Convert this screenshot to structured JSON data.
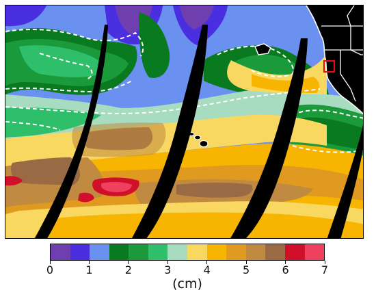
{
  "map": {
    "colors": {
      "bg_blue": "#6a90f0",
      "purple": "#6f3fb0",
      "dark_blue": "#4a2fe0",
      "light_blue": "#6a90f0",
      "dark_green": "#0a7a20",
      "green": "#1a9a3a",
      "teal_green": "#2fbf6a",
      "pale_green": "#a8dcc0",
      "yellow": "#f8d860",
      "orange": "#f7b400",
      "dark_orange": "#e09a20",
      "tan": "#c08a40",
      "brown": "#9a6a45",
      "crimson": "#d0102a",
      "red": "#f04060",
      "land_black": "#000000",
      "contour_white": "#ffffff",
      "highlight_box": "#e01010"
    },
    "features": [
      "swath-gap",
      "dashed-contour",
      "land-west-coast",
      "state-borders",
      "hawaiian-islands",
      "study-region-box"
    ]
  },
  "colorbar": {
    "colors": [
      "#6f3fb0",
      "#4a2fe0",
      "#6a90f0",
      "#0a7a20",
      "#1a9a3a",
      "#2fbf6a",
      "#a8dcc0",
      "#f8d860",
      "#f7b400",
      "#e09a20",
      "#c08a40",
      "#9a6a45",
      "#d0102a",
      "#f04060"
    ],
    "tick_labels": [
      "0",
      "1",
      "2",
      "3",
      "4",
      "5",
      "6",
      "7"
    ],
    "unit": "(cm)",
    "range": [
      0,
      7
    ],
    "step": 0.5
  }
}
